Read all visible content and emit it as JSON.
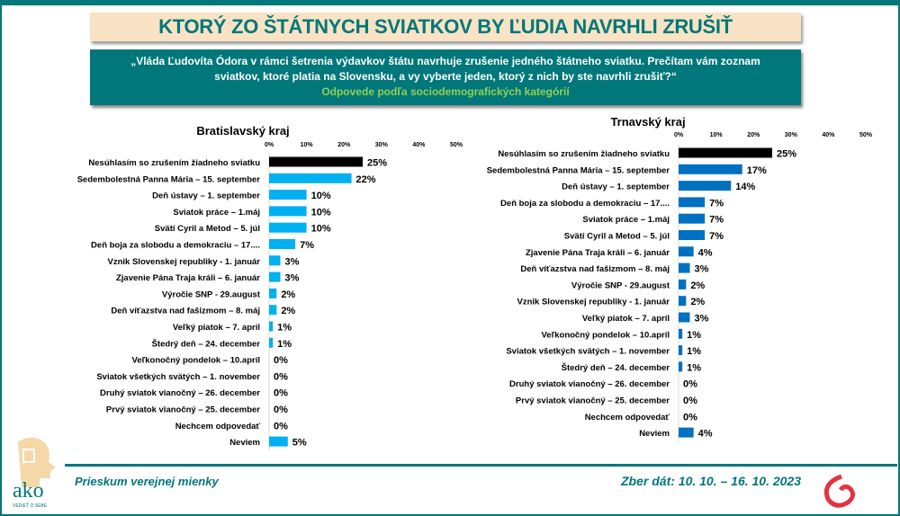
{
  "header": {
    "title": "KTORÝ ZO ŠTÁTNYCH SVIATKOV BY ĽUDIA NAVRHLI ZRUŠIŤ",
    "question_line1": "„Vláda Ľudovíta Ódora v rámci šetrenia výdavkov štátu navrhuje zrušenie jedného štátneho sviatku. Prečítam vám zoznam",
    "question_line2": "sviatkov,  ktoré platia na Slovensku, a vy vyberte jeden,  ktorý z nich by ste navrhli zrušiť?“",
    "subtitle": "Odpovede podľa sociodemografických kategórií"
  },
  "footer": {
    "left": "Prieskum verejnej mienky",
    "right": "Zber dát: 10. 10. – 16. 10. 2023",
    "logo_text": "ako",
    "logo_tagline": "VEDIEŤ O SEBE"
  },
  "colors": {
    "bratislava": "#00b0f0",
    "trnava": "#0070c0",
    "highlight": "#000000",
    "brand": "#00777a",
    "logo_red": "#e0353f"
  },
  "chart_data": [
    {
      "type": "bar",
      "orientation": "horizontal",
      "title": "Bratislavský kraj",
      "xlim": [
        0,
        50
      ],
      "ticks": [
        "0%",
        "10%",
        "20%",
        "30%",
        "40%",
        "50%"
      ],
      "grid": false,
      "categories": [
        "Nesúhlasím so zrušením žiadneho sviatku",
        "Sedembolestná Panna Mária – 15. september",
        "Deň ústavy – 1. september",
        "Sviatok práce – 1.máj",
        "Svätí Cyril a Metod – 5. júl",
        "Deň boja za slobodu a demokraciu – 17....",
        "Vznik Slovenskej republiky - 1. január",
        "Zjavenie Pána Traja králi – 6. január",
        "Výročie SNP - 29.august",
        "Deň víťazstva nad fašizmom – 8. máj",
        "Veľký piatok – 7. apríl",
        "Štedrý deň – 24. december",
        "Veľkonočný pondelok – 10.apríl",
        "Sviatok všetkých svätých – 1. november",
        "Druhý sviatok vianočný – 26. december",
        "Prvý sviatok vianočný – 25. december",
        "Nechcem odpovedať",
        "Neviem"
      ],
      "values": [
        25,
        22,
        10,
        10,
        10,
        7,
        3,
        3,
        2,
        2,
        1,
        1,
        0,
        0,
        0,
        0,
        0,
        5
      ]
    },
    {
      "type": "bar",
      "orientation": "horizontal",
      "title": "Trnavský kraj",
      "xlim": [
        0,
        50
      ],
      "ticks": [
        "0%",
        "10%",
        "20%",
        "30%",
        "40%",
        "50%"
      ],
      "grid": false,
      "categories": [
        "Nesúhlasím so zrušením žiadneho sviatku",
        "Sedembolestná Panna Mária – 15. september",
        "Deň ústavy – 1. september",
        "Deň boja za slobodu a demokraciu – 17....",
        "Sviatok práce – 1.máj",
        "Svätí Cyril a Metod – 5. júl",
        "Zjavenie Pána Traja králi – 6. január",
        "Deň víťazstva nad fašizmom – 8. máj",
        "Výročie SNP - 29.august",
        "Vznik Slovenskej republiky - 1. január",
        "Veľký piatok – 7. apríl",
        "Veľkonočný pondelok – 10.apríl",
        "Sviatok všetkých svätých – 1. november",
        "Štedrý deň – 24. december",
        "Druhý sviatok vianočný – 26. december",
        "Prvý sviatok vianočný – 25. december",
        "Nechcem odpovedať",
        "Neviem"
      ],
      "values": [
        25,
        17,
        14,
        7,
        7,
        7,
        4,
        3,
        2,
        2,
        3,
        1,
        1,
        1,
        0,
        0,
        0,
        4
      ]
    }
  ]
}
